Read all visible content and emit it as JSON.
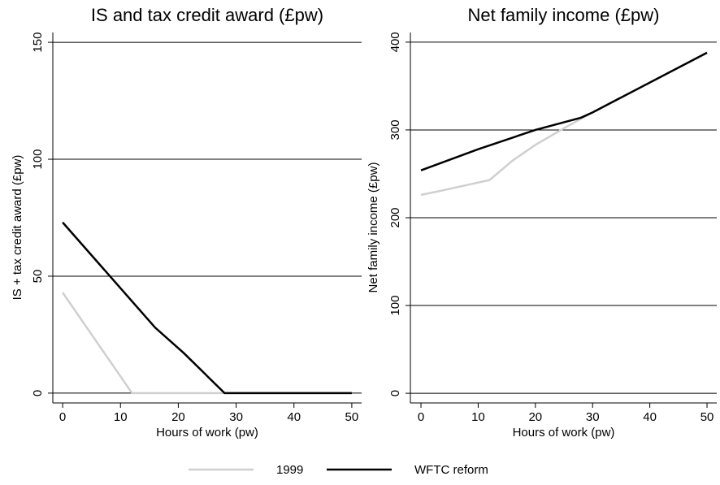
{
  "chart_data": [
    {
      "type": "line",
      "title": "IS and tax credit award (£pw)",
      "xlabel": "Hours of work (pw)",
      "ylabel": "IS + tax credit award (£pw)",
      "xlim": [
        -1.7,
        51.7
      ],
      "xticks": [
        0,
        10,
        20,
        30,
        40,
        50
      ],
      "ylim": [
        -4.2,
        154.2
      ],
      "yticks": [
        0,
        50,
        100,
        150
      ],
      "grid": true,
      "series": [
        {
          "name": "1999",
          "color": "#cfcfcf",
          "x": [
            0,
            12,
            50
          ],
          "values": [
            43,
            0,
            0
          ]
        },
        {
          "name": "WFTC reform",
          "color": "#000000",
          "x": [
            0,
            16,
            21,
            28,
            50
          ],
          "values": [
            73,
            28,
            17,
            0,
            0
          ]
        }
      ]
    },
    {
      "type": "line",
      "title": "Net family income (£pw)",
      "xlabel": "Hours of work (pw)",
      "ylabel": "Net family income (£pw)",
      "xlim": [
        -1.85,
        51.7
      ],
      "xticks": [
        0,
        10,
        20,
        30,
        40,
        50
      ],
      "ylim": [
        -11,
        411
      ],
      "yticks": [
        0,
        100,
        200,
        300,
        400
      ],
      "grid": true,
      "series": [
        {
          "color": "#cfcfcf",
          "x": [
            0,
            3,
            12,
            16,
            20,
            25,
            30,
            50
          ],
          "values": [
            226,
            230,
            243,
            265,
            283,
            302,
            320,
            388
          ]
        },
        {
          "color": "#000000",
          "x": [
            0,
            10,
            20,
            28,
            30,
            50
          ],
          "values": [
            254,
            278,
            300,
            314,
            320,
            388
          ]
        }
      ]
    }
  ]
}
